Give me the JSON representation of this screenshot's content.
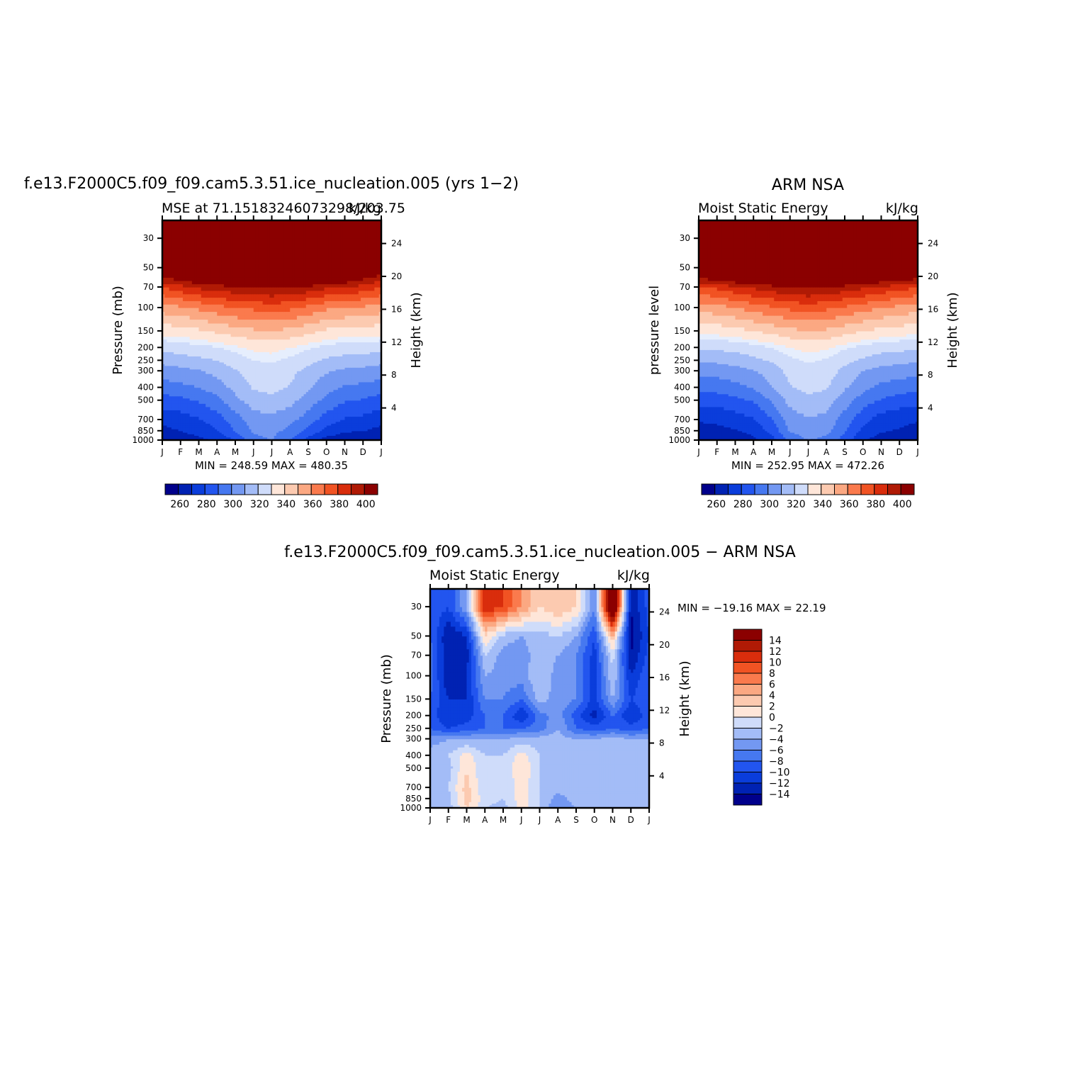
{
  "colors": {
    "scale": [
      "#00008b",
      "#0022b3",
      "#0a3ddb",
      "#2255ef",
      "#4678f0",
      "#7398f2",
      "#a3bcf7",
      "#cfdcfa",
      "#e6eefd",
      "#fee6d9",
      "#fccab0",
      "#fba882",
      "#fa7a4d",
      "#f15323",
      "#d92d0c",
      "#b01a05",
      "#8b0000"
    ]
  },
  "panels": [
    {
      "id": "model",
      "main_title": "f.e13.F2000C5.f09_f09.cam5.3.51.ice_nucleation.005 (yrs 1−2)",
      "left_subtitle": "MSE at 71.15183246073298/203.75",
      "right_subtitle": "kJ/kg",
      "y_label": "Pressure (mb)",
      "y2_label": "Height (km)",
      "minmax": "MIN = 248.59 MAX = 480.35"
    },
    {
      "id": "obs",
      "main_title": "ARM NSA",
      "left_subtitle": "Moist Static Energy",
      "right_subtitle": "kJ/kg",
      "y_label": "pressure level",
      "y2_label": "Height (km)",
      "minmax": "MIN = 252.95 MAX = 472.26"
    },
    {
      "id": "diff",
      "main_title": "f.e13.F2000C5.f09_f09.cam5.3.51.ice_nucleation.005 − ARM NSA",
      "left_subtitle": "Moist Static Energy",
      "right_subtitle": "kJ/kg",
      "y_label": "Pressure (mb)",
      "y2_label": "Height (km)",
      "minmax": "MIN = −19.16 MAX =  22.19"
    }
  ],
  "chart_data": [
    {
      "type": "heatmap",
      "title": "MSE at 71.15183246073298/203.75",
      "xlabel": "",
      "ylabel": "Pressure (mb)",
      "y2label": "Height (km)",
      "units": "kJ/kg",
      "x": [
        "J",
        "F",
        "M",
        "A",
        "M",
        "J",
        "J",
        "A",
        "S",
        "O",
        "N",
        "D",
        "J"
      ],
      "y_pressure_ticks": [
        30,
        50,
        70,
        100,
        150,
        200,
        250,
        300,
        400,
        500,
        700,
        850,
        1000
      ],
      "y_height_ticks": [
        4,
        8,
        12,
        16,
        20,
        24
      ],
      "y_log_scale": true,
      "colorbar_levels": [
        255,
        260,
        265,
        270,
        275,
        280,
        285,
        290,
        295,
        300,
        305,
        310,
        315,
        320,
        325,
        330,
        335,
        340,
        345,
        350,
        355,
        360,
        365,
        370,
        375,
        380,
        385,
        390,
        395,
        400
      ],
      "colorbar_labels": [
        "260",
        "280",
        "300",
        "320",
        "340",
        "360",
        "380",
        "400"
      ],
      "levels_pressure": [
        1000,
        850,
        700,
        500,
        400,
        300,
        250,
        200,
        150,
        100,
        70,
        50,
        30
      ],
      "values": [
        [
          257,
          260,
          263,
          266,
          275,
          292,
          295,
          284,
          270,
          260,
          258,
          258,
          257
        ],
        [
          262,
          265,
          268,
          274,
          286,
          296,
          298,
          292,
          282,
          272,
          266,
          265,
          262
        ],
        [
          268,
          270,
          274,
          280,
          290,
          300,
          302,
          298,
          290,
          280,
          274,
          272,
          268
        ],
        [
          280,
          282,
          286,
          292,
          302,
          310,
          312,
          308,
          300,
          292,
          286,
          284,
          280
        ],
        [
          290,
          292,
          295,
          300,
          308,
          316,
          318,
          314,
          306,
          298,
          294,
          292,
          290
        ],
        [
          300,
          302,
          304,
          308,
          314,
          320,
          322,
          318,
          312,
          306,
          303,
          302,
          300
        ],
        [
          308,
          310,
          312,
          315,
          320,
          325,
          326,
          323,
          318,
          313,
          311,
          310,
          308
        ],
        [
          318,
          320,
          322,
          324,
          328,
          332,
          333,
          330,
          326,
          322,
          320,
          320,
          318
        ],
        [
          334,
          335,
          338,
          342,
          345,
          348,
          350,
          347,
          343,
          338,
          336,
          336,
          334
        ],
        [
          355,
          358,
          362,
          366,
          370,
          372,
          374,
          372,
          367,
          362,
          360,
          358,
          355
        ],
        [
          380,
          386,
          392,
          395,
          398,
          400,
          402,
          400,
          397,
          392,
          390,
          386,
          380
        ],
        [
          420,
          425,
          432,
          440,
          446,
          450,
          455,
          452,
          445,
          438,
          434,
          420,
          410
        ],
        [
          470,
          472,
          475,
          478,
          480,
          480,
          480,
          480,
          478,
          476,
          475,
          472,
          470
        ]
      ],
      "min": 248.59,
      "max": 480.35
    },
    {
      "type": "heatmap",
      "title": "Moist Static Energy",
      "xlabel": "",
      "ylabel": "pressure level",
      "y2label": "Height (km)",
      "units": "kJ/kg",
      "x": [
        "J",
        "F",
        "M",
        "A",
        "M",
        "J",
        "J",
        "A",
        "S",
        "O",
        "N",
        "D",
        "J"
      ],
      "y_pressure_ticks": [
        30,
        50,
        70,
        100,
        150,
        200,
        250,
        300,
        400,
        500,
        700,
        850,
        1000
      ],
      "y_height_ticks": [
        4,
        8,
        12,
        16,
        20,
        24
      ],
      "y_log_scale": true,
      "colorbar_levels": [
        255,
        260,
        265,
        270,
        275,
        280,
        285,
        290,
        295,
        300,
        305,
        310,
        315,
        320,
        325,
        330,
        335,
        340,
        345,
        350,
        355,
        360,
        365,
        370,
        375,
        380,
        385,
        390,
        395,
        400
      ],
      "colorbar_labels": [
        "260",
        "280",
        "300",
        "320",
        "340",
        "360",
        "380",
        "400"
      ],
      "levels_pressure": [
        1000,
        850,
        700,
        500,
        400,
        300,
        250,
        200,
        150,
        100,
        70,
        50,
        30
      ],
      "values": [
        [
          256,
          257,
          258,
          262,
          270,
          288,
          295,
          292,
          280,
          266,
          260,
          258,
          256
        ],
        [
          261,
          262,
          264,
          268,
          278,
          296,
          300,
          298,
          286,
          272,
          266,
          264,
          261
        ],
        [
          266,
          267,
          270,
          274,
          284,
          300,
          304,
          302,
          290,
          278,
          270,
          268,
          266
        ],
        [
          278,
          279,
          282,
          286,
          296,
          308,
          312,
          310,
          300,
          290,
          284,
          280,
          278
        ],
        [
          288,
          289,
          292,
          296,
          304,
          314,
          318,
          316,
          306,
          298,
          292,
          290,
          288
        ],
        [
          298,
          299,
          301,
          304,
          310,
          318,
          322,
          320,
          312,
          305,
          301,
          300,
          298
        ],
        [
          306,
          307,
          309,
          312,
          316,
          323,
          326,
          324,
          318,
          313,
          309,
          308,
          306
        ],
        [
          316,
          317,
          318,
          321,
          325,
          330,
          333,
          331,
          326,
          322,
          319,
          318,
          316
        ],
        [
          333,
          334,
          336,
          340,
          343,
          347,
          350,
          348,
          344,
          340,
          337,
          335,
          333
        ],
        [
          354,
          356,
          360,
          364,
          368,
          372,
          374,
          372,
          368,
          364,
          360,
          357,
          354
        ],
        [
          378,
          382,
          388,
          392,
          396,
          400,
          402,
          400,
          396,
          392,
          388,
          384,
          380
        ],
        [
          425,
          430,
          436,
          442,
          446,
          450,
          452,
          450,
          446,
          440,
          434,
          430,
          425
        ],
        [
          468,
          469,
          470,
          471,
          472,
          472,
          472,
          472,
          471,
          470,
          469,
          469,
          468
        ]
      ],
      "min": 252.95,
      "max": 472.26
    },
    {
      "type": "heatmap",
      "title": "Moist Static Energy",
      "xlabel": "",
      "ylabel": "Pressure (mb)",
      "y2label": "Height (km)",
      "units": "kJ/kg",
      "x": [
        "J",
        "F",
        "M",
        "A",
        "M",
        "J",
        "J",
        "A",
        "S",
        "O",
        "N",
        "D",
        "J"
      ],
      "y_pressure_ticks": [
        30,
        50,
        70,
        100,
        150,
        200,
        250,
        300,
        400,
        500,
        700,
        850,
        1000
      ],
      "y_height_ticks": [
        4,
        8,
        12,
        16,
        20,
        24
      ],
      "y_log_scale": true,
      "colorbar_levels": [
        -14,
        -12,
        -10,
        -8,
        -6,
        -4,
        -2,
        0,
        2,
        4,
        6,
        8,
        10,
        12,
        14
      ],
      "colorbar_labels": [
        "−14",
        "−12",
        "−10",
        "−8",
        "−6",
        "−4",
        "−2",
        "0",
        "2",
        "4",
        "6",
        "8",
        "10",
        "12",
        "14"
      ],
      "levels_pressure": [
        1000,
        850,
        700,
        500,
        400,
        300,
        250,
        200,
        150,
        100,
        70,
        50,
        30
      ],
      "values": [
        [
          -2,
          -3,
          2,
          -2,
          -3,
          1,
          -2,
          -6,
          -4,
          -3,
          -3,
          -4,
          -3
        ],
        [
          -3,
          -3,
          3,
          -1,
          -2,
          1,
          -2,
          -5,
          -3,
          -4,
          -3,
          -2,
          -3
        ],
        [
          -3,
          -2,
          3,
          -2,
          -2,
          1,
          -2,
          -3,
          -3,
          -4,
          -3,
          -2,
          -2
        ],
        [
          -3,
          -3,
          2,
          -2,
          -2,
          2,
          -2,
          -3,
          -3,
          -3,
          -4,
          -3,
          -3
        ],
        [
          -3,
          -2,
          1,
          -2,
          -2,
          1,
          -2,
          -3,
          -3,
          -3,
          -3,
          -3,
          -3
        ],
        [
          -5,
          -4,
          -4,
          -4,
          -4,
          -3,
          -3,
          -3,
          -4,
          -4,
          -3,
          -4,
          -4
        ],
        [
          -8,
          -10,
          -9,
          -8,
          -8,
          -8,
          -7,
          -4,
          -8,
          -9,
          -8,
          -9,
          -8
        ],
        [
          -9,
          -12,
          -11,
          -8,
          -8,
          -12,
          -7,
          -5,
          -9,
          -13,
          -8,
          -12,
          -9
        ],
        [
          -8,
          -12,
          -12,
          -6,
          -6,
          -8,
          -3,
          -5,
          -6,
          -11,
          -4,
          -10,
          -8
        ],
        [
          -7,
          -14,
          -12,
          -4,
          -5,
          -5,
          -2,
          -5,
          -6,
          -11,
          -2,
          -12,
          -8
        ],
        [
          -7,
          -14,
          -13,
          -2,
          -5,
          -5,
          -3,
          -4,
          -6,
          -11,
          -1,
          -14,
          -9
        ],
        [
          -8,
          -14,
          -12,
          2,
          -3,
          -4,
          -3,
          -2,
          -4,
          -10,
          4,
          -15,
          -10
        ],
        [
          -8,
          -10,
          -4,
          12,
          10,
          6,
          2,
          4,
          2,
          -6,
          22,
          -14,
          -9
        ]
      ],
      "min": -19.16,
      "max": 22.19
    }
  ]
}
